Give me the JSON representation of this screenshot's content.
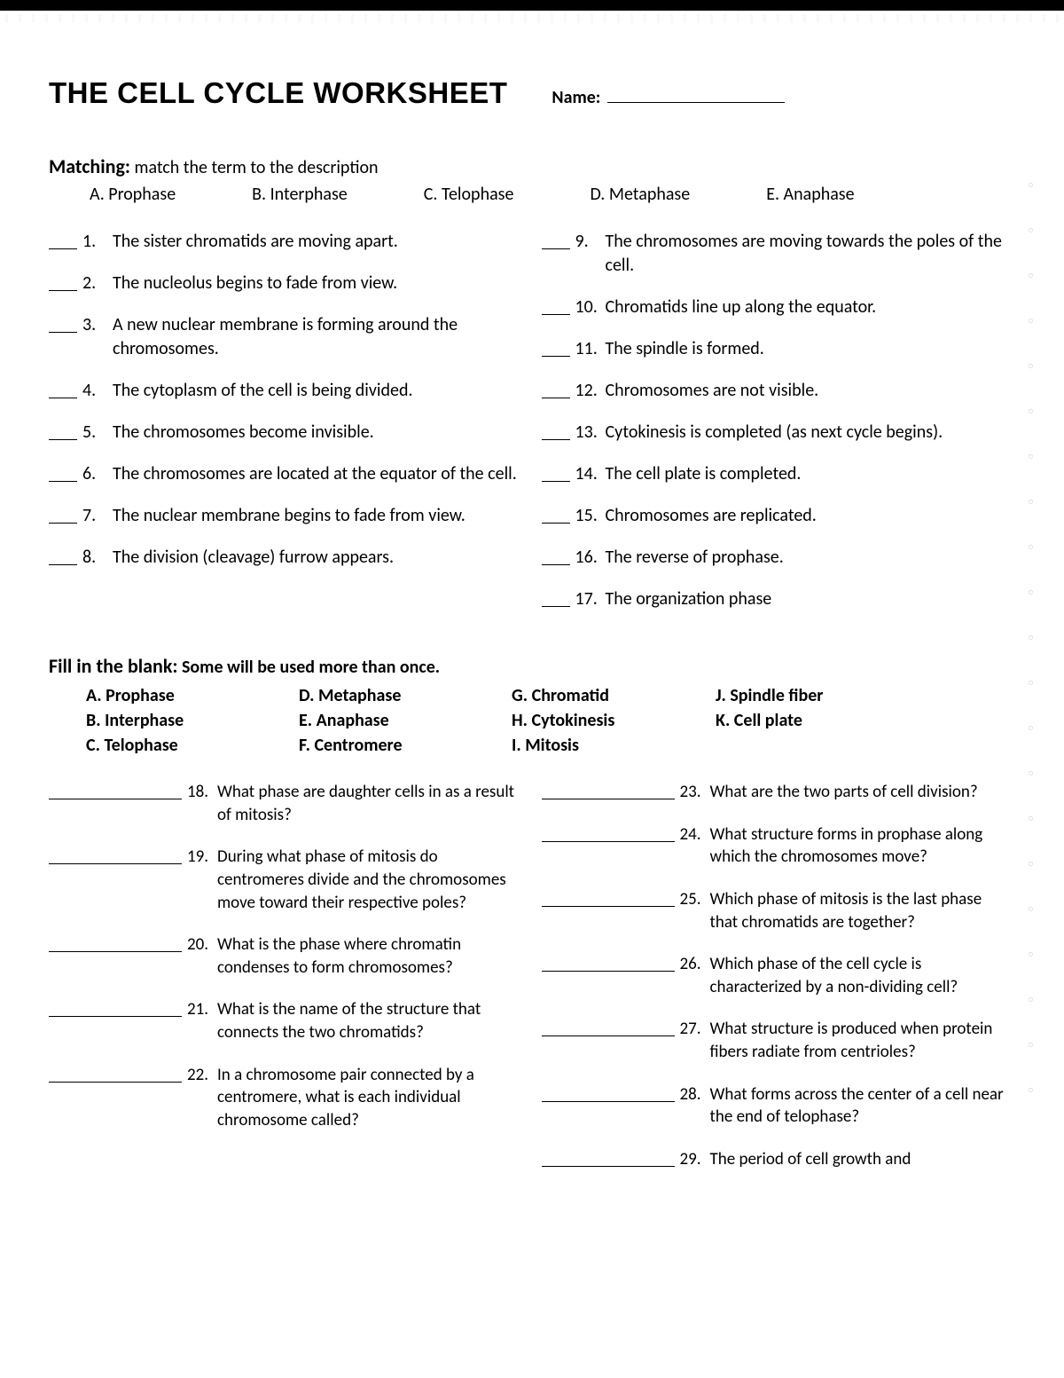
{
  "header": {
    "title": "THE CELL CYCLE WORKSHEET",
    "name_label": "Name:"
  },
  "matching": {
    "heading_bold": "Matching:",
    "heading_rest": " match the term to the description",
    "options": {
      "A": "A. Prophase",
      "B": "B. Interphase",
      "C": "C. Telophase",
      "D": "D. Metaphase",
      "E": "E. Anaphase"
    },
    "left": [
      {
        "n": "1.",
        "t": "The sister chromatids are moving apart."
      },
      {
        "n": "2.",
        "t": "The nucleolus begins to fade from view."
      },
      {
        "n": "3.",
        "t": "A new nuclear membrane is forming around the chromosomes."
      },
      {
        "n": "4.",
        "t": "The cytoplasm of the cell is being divided."
      },
      {
        "n": "5.",
        "t": "The chromosomes become invisible."
      },
      {
        "n": "6.",
        "t": "The chromosomes are located at the equator of the cell."
      },
      {
        "n": "7.",
        "t": "The nuclear membrane begins to fade from view."
      },
      {
        "n": "8.",
        "t": "The division (cleavage) furrow appears."
      }
    ],
    "right": [
      {
        "n": "9.",
        "t": "The chromosomes are moving towards the poles of the cell."
      },
      {
        "n": "10.",
        "t": "Chromatids line up along the equator."
      },
      {
        "n": "11.",
        "t": "The spindle is formed."
      },
      {
        "n": "12.",
        "t": "Chromosomes are not visible."
      },
      {
        "n": "13.",
        "t": "Cytokinesis is completed (as next cycle begins)."
      },
      {
        "n": "14.",
        "t": "The cell plate is completed."
      },
      {
        "n": "15.",
        "t": "Chromosomes are replicated."
      },
      {
        "n": "16.",
        "t": "The reverse of prophase."
      },
      {
        "n": "17.",
        "t": "The organization phase"
      }
    ]
  },
  "fill": {
    "heading_bold": "Fill in the blank:",
    "heading_rest": " Some will be used more than once.",
    "options": {
      "A": "A. Prophase",
      "B": "B. Interphase",
      "C": "C. Telophase",
      "D": "D. Metaphase",
      "E": "E. Anaphase",
      "F": "F. Centromere",
      "G": "G.  Chromatid",
      "H": "H. Cytokinesis",
      "I": "I. Mitosis",
      "J": "J. Spindle fiber",
      "K": "K. Cell plate"
    },
    "left": [
      {
        "n": "18.",
        "t": "What phase are daughter cells in as a result of mitosis?"
      },
      {
        "n": "19.",
        "t": "During what phase of mitosis do centromeres divide and the chromosomes move toward their respective poles?"
      },
      {
        "n": "20.",
        "t": "What is the phase where chromatin condenses to form chromosomes?"
      },
      {
        "n": "21.",
        "t": "What is the name of the structure that connects the two chromatids?"
      },
      {
        "n": "22.",
        "t": "In a chromosome pair connected by a centromere, what is each individual chromosome called?"
      }
    ],
    "right": [
      {
        "n": "23.",
        "t": "What are the two parts of cell division?"
      },
      {
        "n": "24.",
        "t": "What structure forms in prophase along which the chromosomes move?"
      },
      {
        "n": "25.",
        "t": "Which phase of mitosis is the last phase that chromatids are together?"
      },
      {
        "n": "26.",
        "t": "Which phase of the cell cycle is characterized by a non-dividing cell?"
      },
      {
        "n": "27.",
        "t": "What structure is produced when protein fibers radiate from centrioles?"
      },
      {
        "n": "28.",
        "t": "What forms across the center of a cell near the end of telophase?"
      },
      {
        "n": "29.",
        "t": "The period of cell growth and"
      }
    ]
  }
}
